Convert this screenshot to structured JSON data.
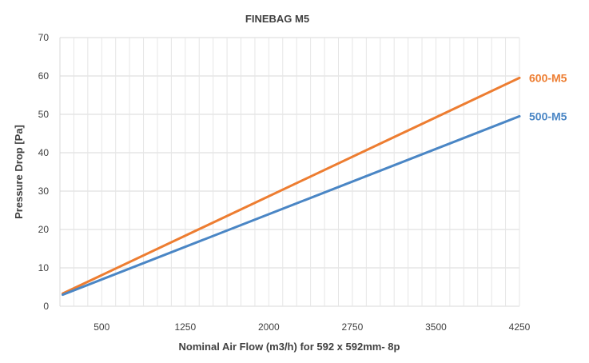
{
  "chart_data": {
    "type": "line",
    "title": "FINEBAG M5",
    "xlabel": "Nominal Air Flow (m3/h) for 592 x 592mm- 8p",
    "ylabel": "Pressure Drop [Pa]",
    "xlim": [
      125,
      4250
    ],
    "ylim": [
      0,
      70
    ],
    "xticks": [
      500,
      1250,
      2000,
      2750,
      3500,
      4250
    ],
    "yticks": [
      0,
      10,
      20,
      30,
      40,
      50,
      60,
      70
    ],
    "grid": true,
    "series": [
      {
        "name": "600-M5",
        "color": "#ed7d31",
        "x": [
          150,
          4250
        ],
        "y": [
          3.3,
          59.5
        ]
      },
      {
        "name": "500-M5",
        "color": "#4a86c5",
        "x": [
          150,
          4250
        ],
        "y": [
          3.0,
          49.5
        ]
      }
    ]
  }
}
